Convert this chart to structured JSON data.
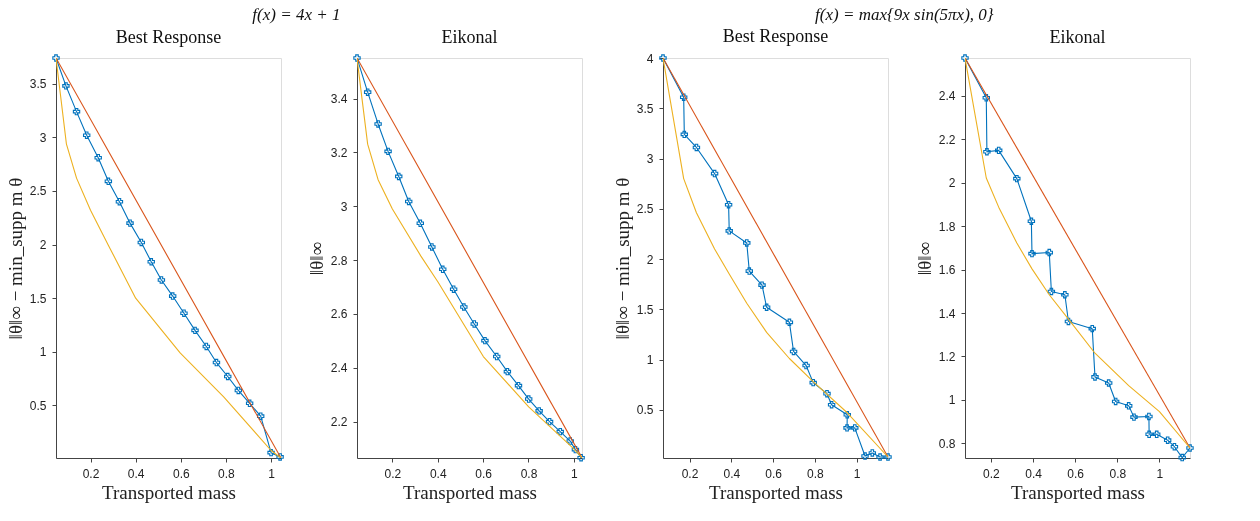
{
  "chart_data": [
    {
      "type": "line",
      "title": "Best Response",
      "annotations": [
        "f(x) = 4x + 1"
      ],
      "xlabel": "Transported mass",
      "ylabel": "‖θ‖∞ − min_supp m θ",
      "xlim": [
        0.047,
        1.044
      ],
      "ylim": [
        0.01,
        3.74
      ],
      "xticks": [
        0.2,
        0.4,
        0.6,
        0.8,
        1
      ],
      "yticks": [
        0.5,
        1,
        1.5,
        2,
        2.5,
        3,
        3.5
      ],
      "series": [
        {
          "color": "#0072bd",
          "marker": "cross",
          "x": [
            0.047,
            0.091,
            0.138,
            0.183,
            0.234,
            0.279,
            0.328,
            0.375,
            0.425,
            0.469,
            0.514,
            0.564,
            0.614,
            0.663,
            0.713,
            0.758,
            0.808,
            0.855,
            0.905,
            0.954,
            1.0,
            1.04
          ],
          "values": [
            3.74,
            3.48,
            3.24,
            3.02,
            2.81,
            2.59,
            2.4,
            2.2,
            2.02,
            1.84,
            1.67,
            1.52,
            1.36,
            1.2,
            1.05,
            0.9,
            0.77,
            0.64,
            0.52,
            0.4,
            0.06,
            0.02
          ]
        },
        {
          "color": "#d95319",
          "x": [
            0.047,
            1.044
          ],
          "values": [
            3.74,
            0.01
          ]
        },
        {
          "color": "#edb120",
          "x": [
            0.047,
            0.093,
            0.138,
            0.2,
            0.28,
            0.4,
            0.597,
            0.79,
            1.0,
            1.044
          ],
          "values": [
            3.74,
            2.94,
            2.62,
            2.32,
            1.99,
            1.5,
            0.99,
            0.58,
            0.08,
            0.01
          ]
        }
      ]
    },
    {
      "type": "line",
      "title": "Eikonal",
      "xlabel": "Transported mass",
      "ylabel": "‖θ‖∞",
      "xlim": [
        0.044,
        1.036
      ],
      "ylim": [
        2.065,
        3.551
      ],
      "xticks": [
        0.2,
        0.4,
        0.6,
        0.8,
        1
      ],
      "yticks": [
        2.2,
        2.4,
        2.6,
        2.8,
        3,
        3.2,
        3.4
      ],
      "series": [
        {
          "color": "#0072bd",
          "marker": "cross",
          "x": [
            0.044,
            0.091,
            0.137,
            0.181,
            0.228,
            0.272,
            0.323,
            0.374,
            0.422,
            0.47,
            0.515,
            0.561,
            0.608,
            0.66,
            0.707,
            0.756,
            0.801,
            0.847,
            0.893,
            0.94,
            0.984,
            1.007,
            1.032
          ],
          "values": [
            3.551,
            3.424,
            3.306,
            3.204,
            3.111,
            3.018,
            2.937,
            2.849,
            2.766,
            2.692,
            2.626,
            2.563,
            2.501,
            2.442,
            2.386,
            2.334,
            2.284,
            2.24,
            2.2,
            2.163,
            2.128,
            2.096,
            2.066
          ]
        },
        {
          "color": "#d95319",
          "x": [
            0.044,
            1.036
          ],
          "values": [
            3.551,
            2.066
          ]
        },
        {
          "color": "#edb120",
          "x": [
            0.044,
            0.066,
            0.091,
            0.137,
            0.2,
            0.325,
            0.401,
            0.601,
            0.801,
            1.0,
            1.036
          ],
          "values": [
            3.551,
            3.4,
            3.231,
            3.099,
            2.99,
            2.816,
            2.719,
            2.442,
            2.255,
            2.099,
            2.066
          ]
        }
      ]
    },
    {
      "type": "line",
      "title": "Best Response",
      "annotations": [
        "f(x) = max{9x sin(5πx), 0}"
      ],
      "xlabel": "Transported mass",
      "ylabel": "‖θ‖∞ − min_supp m θ",
      "xlim": [
        0.073,
        1.15
      ],
      "ylim": [
        0.02,
        4.0
      ],
      "xticks": [
        0.2,
        0.4,
        0.6,
        0.8,
        1
      ],
      "yticks": [
        0.5,
        1,
        1.5,
        2,
        2.5,
        3,
        3.5,
        4
      ],
      "series": [
        {
          "color": "#0072bd",
          "marker": "cross",
          "x": [
            0.073,
            0.172,
            0.175,
            0.233,
            0.32,
            0.387,
            0.39,
            0.474,
            0.486,
            0.547,
            0.569,
            0.678,
            0.698,
            0.758,
            0.792,
            0.858,
            0.88,
            0.955,
            0.954,
            0.991,
            1.04,
            1.075,
            1.112,
            1.15
          ],
          "values": [
            4.0,
            3.61,
            3.24,
            3.11,
            2.85,
            2.54,
            2.28,
            2.16,
            1.88,
            1.74,
            1.52,
            1.37,
            1.08,
            0.94,
            0.77,
            0.66,
            0.55,
            0.45,
            0.32,
            0.32,
            0.04,
            0.07,
            0.03,
            0.03
          ]
        },
        {
          "color": "#d95319",
          "x": [
            0.073,
            1.15
          ],
          "values": [
            4.0,
            0.03
          ]
        },
        {
          "color": "#edb120",
          "x": [
            0.073,
            0.172,
            0.233,
            0.32,
            0.39,
            0.474,
            0.569,
            0.678,
            0.792,
            0.955,
            1.15
          ],
          "values": [
            4.0,
            2.8,
            2.46,
            2.1,
            1.85,
            1.56,
            1.27,
            1.01,
            0.78,
            0.47,
            0.03
          ]
        }
      ]
    },
    {
      "type": "line",
      "title": "Eikonal",
      "xlabel": "Transported mass",
      "ylabel": "‖θ‖∞",
      "xlim": [
        0.077,
        1.145
      ],
      "ylim": [
        0.733,
        2.573
      ],
      "xticks": [
        0.2,
        0.4,
        0.6,
        0.8,
        1
      ],
      "yticks": [
        0.8,
        1,
        1.2,
        1.4,
        1.6,
        1.8,
        2,
        2.2,
        2.4
      ],
      "series": [
        {
          "color": "#0072bd",
          "marker": "cross",
          "x": [
            0.077,
            0.178,
            0.181,
            0.237,
            0.323,
            0.392,
            0.395,
            0.477,
            0.487,
            0.551,
            0.568,
            0.681,
            0.694,
            0.759,
            0.792,
            0.854,
            0.879,
            0.95,
            0.951,
            0.987,
            1.039,
            1.071,
            1.108,
            1.145
          ],
          "values": [
            2.573,
            2.39,
            2.142,
            2.148,
            2.018,
            1.822,
            1.673,
            1.678,
            1.499,
            1.484,
            1.361,
            1.328,
            1.106,
            1.078,
            0.993,
            0.973,
            0.921,
            0.924,
            0.842,
            0.842,
            0.815,
            0.785,
            0.735,
            0.779
          ]
        },
        {
          "color": "#d95319",
          "x": [
            0.077,
            1.145
          ],
          "values": [
            2.573,
            0.779
          ]
        },
        {
          "color": "#edb120",
          "x": [
            0.077,
            0.178,
            0.237,
            0.323,
            0.395,
            0.477,
            0.568,
            0.694,
            0.854,
            1.0,
            1.145
          ],
          "values": [
            2.573,
            2.021,
            1.887,
            1.722,
            1.603,
            1.484,
            1.372,
            1.215,
            1.066,
            0.946,
            0.779
          ]
        }
      ]
    }
  ]
}
